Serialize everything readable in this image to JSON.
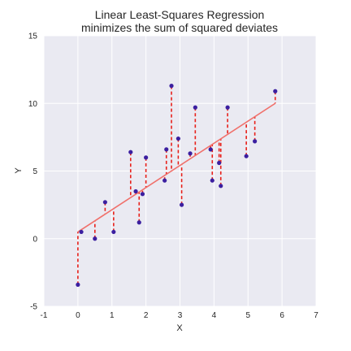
{
  "chart_data": {
    "type": "scatter",
    "title": "Linear Least-Squares Regression",
    "subtitle": "minimizes the sum of squared deviates",
    "xlabel": "X",
    "ylabel": "Y",
    "xlim": [
      -1,
      7
    ],
    "ylim": [
      -5,
      15
    ],
    "xticks": [
      -1,
      0,
      1,
      2,
      3,
      4,
      5,
      6,
      7
    ],
    "yticks": [
      -5,
      0,
      5,
      10,
      15
    ],
    "grid": true,
    "colors": {
      "background": "#eaeaf2",
      "points": "#3b1fa0",
      "fit_line": "#f0706b",
      "residuals": "#e8201a"
    },
    "fit_line": {
      "x": [
        0,
        5.8
      ],
      "y": [
        0.5,
        10.0
      ]
    },
    "points": [
      {
        "x": 0.0,
        "y": -3.4
      },
      {
        "x": 0.1,
        "y": 0.5
      },
      {
        "x": 0.5,
        "y": 0.0
      },
      {
        "x": 0.8,
        "y": 2.7
      },
      {
        "x": 1.05,
        "y": 0.5
      },
      {
        "x": 1.55,
        "y": 6.4
      },
      {
        "x": 1.7,
        "y": 3.5
      },
      {
        "x": 1.8,
        "y": 1.2
      },
      {
        "x": 1.9,
        "y": 3.3
      },
      {
        "x": 2.0,
        "y": 6.0
      },
      {
        "x": 2.55,
        "y": 4.3
      },
      {
        "x": 2.6,
        "y": 6.6
      },
      {
        "x": 2.75,
        "y": 11.3
      },
      {
        "x": 2.95,
        "y": 7.4
      },
      {
        "x": 3.05,
        "y": 2.5
      },
      {
        "x": 3.3,
        "y": 6.3
      },
      {
        "x": 3.45,
        "y": 9.7
      },
      {
        "x": 3.9,
        "y": 6.6
      },
      {
        "x": 3.95,
        "y": 4.3
      },
      {
        "x": 4.15,
        "y": 5.6
      },
      {
        "x": 4.2,
        "y": 3.9
      },
      {
        "x": 4.4,
        "y": 9.7
      },
      {
        "x": 4.95,
        "y": 6.1
      },
      {
        "x": 5.2,
        "y": 7.2
      },
      {
        "x": 5.8,
        "y": 10.9
      }
    ]
  }
}
